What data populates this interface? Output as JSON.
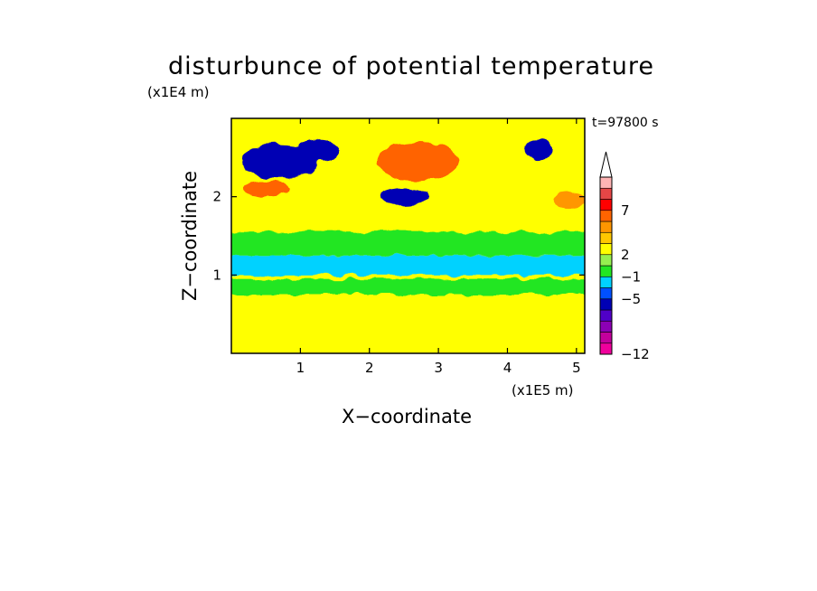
{
  "chart_data": {
    "type": "heatmap",
    "title": "disturbunce of potential temperature",
    "xlabel": "X−coordinate",
    "ylabel": "Z−coordinate",
    "x_unit_label": "(x1E5 m)",
    "y_unit_label": "(x1E4 m)",
    "time_label": "t=97800 s",
    "xlim": [
      0,
      5.12
    ],
    "ylim": [
      0,
      3.0
    ],
    "x_ticks": [
      {
        "value": 1,
        "label": "1"
      },
      {
        "value": 2,
        "label": "2"
      },
      {
        "value": 3,
        "label": "3"
      },
      {
        "value": 4,
        "label": "4"
      },
      {
        "value": 5,
        "label": "5"
      }
    ],
    "y_ticks": [
      {
        "value": 1,
        "label": "1"
      },
      {
        "value": 2,
        "label": "2"
      }
    ],
    "colorbar": {
      "extend": "max",
      "levels": [
        {
          "color": "#f0009c"
        },
        {
          "color": "#c3009c"
        },
        {
          "color": "#8c00b4"
        },
        {
          "color": "#5000c8"
        },
        {
          "color": "#0000b4"
        },
        {
          "color": "#0050ff"
        },
        {
          "color": "#00d2ff"
        },
        {
          "color": "#22e622"
        },
        {
          "color": "#96f050"
        },
        {
          "color": "#ffff00"
        },
        {
          "color": "#ffc800"
        },
        {
          "color": "#ff9600"
        },
        {
          "color": "#ff6400"
        },
        {
          "color": "#ff0000"
        },
        {
          "color": "#e64646"
        },
        {
          "color": "#ffb4b4"
        }
      ],
      "labels": [
        {
          "text": "−12",
          "level_index": 0
        },
        {
          "text": "−5",
          "level_index": 5
        },
        {
          "text": "−1",
          "level_index": 7
        },
        {
          "text": "2",
          "level_index": 9
        },
        {
          "text": "7",
          "level_index": 13
        }
      ]
    },
    "colors": {
      "background": "#ffff00",
      "lower_band": "#ffff00",
      "cyan_band": "#00d2ff",
      "green_band": "#22e622",
      "upper_warm": "#ff9600",
      "upper_cold": "#0000b4"
    },
    "features": [
      {
        "kind": "band",
        "z_min": 0.75,
        "z_max": 0.95,
        "value_color": "#22e622"
      },
      {
        "kind": "band",
        "z_min": 1.0,
        "z_max": 1.25,
        "value_color": "#00d2ff"
      },
      {
        "kind": "band",
        "z_min": 1.25,
        "z_max": 1.55,
        "value_color": "#22e622"
      },
      {
        "kind": "blob",
        "x": 0.7,
        "z": 2.45,
        "rx": 0.55,
        "rz": 0.22,
        "value_color": "#0000b4"
      },
      {
        "kind": "blob",
        "x": 1.25,
        "z": 2.6,
        "rx": 0.3,
        "rz": 0.15,
        "value_color": "#0000b4"
      },
      {
        "kind": "blob",
        "x": 2.7,
        "z": 2.45,
        "rx": 0.6,
        "rz": 0.25,
        "value_color": "#ff6400"
      },
      {
        "kind": "blob",
        "x": 2.5,
        "z": 2.0,
        "rx": 0.35,
        "rz": 0.1,
        "value_color": "#0000b4"
      },
      {
        "kind": "blob",
        "x": 4.45,
        "z": 2.6,
        "rx": 0.22,
        "rz": 0.12,
        "value_color": "#0000b4"
      },
      {
        "kind": "blob",
        "x": 0.5,
        "z": 2.1,
        "rx": 0.35,
        "rz": 0.1,
        "value_color": "#ff6400"
      },
      {
        "kind": "blob",
        "x": 4.9,
        "z": 1.95,
        "rx": 0.25,
        "rz": 0.1,
        "value_color": "#ff9600"
      }
    ]
  }
}
